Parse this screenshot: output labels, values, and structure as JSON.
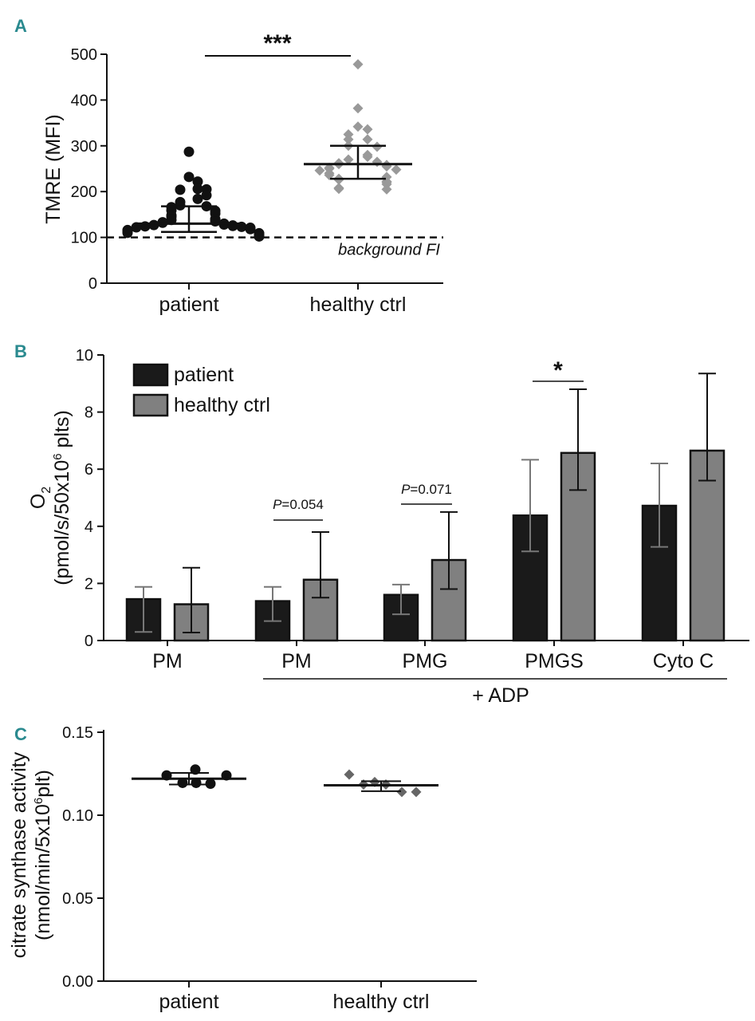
{
  "chart_data": [
    {
      "panel": "A",
      "type": "scatter",
      "ylabel": "TMRE (MFI)",
      "ylim": [
        0,
        500
      ],
      "yticks": [
        "0",
        "100",
        "200",
        "300",
        "400",
        "500"
      ],
      "categories": [
        "patient",
        "healthy ctrl"
      ],
      "reference_line": {
        "value": 100,
        "label": "background FI",
        "style": "dashed"
      },
      "significance": "***",
      "series": [
        {
          "name": "patient",
          "marker": "circle",
          "color": "#111111",
          "values": [
            287,
            232,
            222,
            206,
            204,
            205,
            192,
            184,
            177,
            170,
            168,
            166,
            159,
            158,
            152,
            148,
            145,
            140,
            138,
            135,
            133,
            132,
            130,
            128,
            127,
            126,
            125,
            124,
            123,
            122,
            121,
            120,
            118,
            116,
            115,
            113,
            112,
            110,
            109,
            108,
            107,
            106,
            105,
            104,
            103,
            102
          ],
          "median": 130,
          "iqr": [
            112,
            168
          ]
        },
        {
          "name": "healthy ctrl",
          "marker": "diamond",
          "color": "#999999",
          "values": [
            478,
            382,
            342,
            336,
            325,
            314,
            314,
            300,
            298,
            280,
            276,
            270,
            265,
            262,
            260,
            258,
            255,
            252,
            250,
            248,
            246,
            240,
            236,
            232,
            228,
            226,
            222,
            220,
            216,
            208,
            206,
            205
          ],
          "median": 260,
          "iqr": [
            228,
            300
          ]
        }
      ]
    },
    {
      "panel": "B",
      "type": "bar",
      "ylabel_line1": "O",
      "ylabel_sub": "2",
      "ylabel_line2a": "(pmol/s/50x10",
      "ylabel_sup": "6",
      "ylabel_line2b": " plts)",
      "ylim": [
        0,
        10
      ],
      "yticks": [
        "0",
        "2",
        "4",
        "6",
        "8",
        "10"
      ],
      "categories": [
        "PM",
        "PM",
        "PMG",
        "PMGS",
        "Cyto C"
      ],
      "group_label": "+ ADP",
      "series": [
        {
          "name": "patient",
          "color": "#1a1a1a",
          "values": [
            1.45,
            1.38,
            1.6,
            4.38,
            4.72
          ],
          "err_low": [
            0.3,
            0.68,
            0.92,
            3.12,
            3.28
          ],
          "err_high": [
            1.88,
            1.88,
            1.96,
            6.33,
            6.2
          ]
        },
        {
          "name": "healthy ctrl",
          "color": "#808080",
          "values": [
            1.27,
            2.13,
            2.82,
            6.57,
            6.65
          ],
          "err_low": [
            0.28,
            1.5,
            1.8,
            5.27,
            5.6
          ],
          "err_high": [
            2.55,
            3.8,
            4.5,
            8.8,
            9.35
          ]
        }
      ],
      "annotations": [
        {
          "text_p": "P",
          "text_rest": "=0.054",
          "group": 1
        },
        {
          "text_p": "P",
          "text_rest": "=0.071",
          "group": 2
        },
        {
          "text": "*",
          "group": 3
        }
      ]
    },
    {
      "panel": "C",
      "type": "scatter",
      "ylabel_line1": "citrate synthase activity",
      "ylabel_line2a": "(nmol/min/5x10",
      "ylabel_sup": "6",
      "ylabel_line2b": "plt)",
      "ylim": [
        0,
        0.15
      ],
      "yticks": [
        "0.00",
        "0.05",
        "0.10",
        "0.15"
      ],
      "categories": [
        "patient",
        "healthy ctrl"
      ],
      "series": [
        {
          "name": "patient",
          "marker": "circle",
          "color": "#111111",
          "values": [
            0.124,
            0.1275,
            0.124,
            0.1195,
            0.1195,
            0.119
          ],
          "mean": 0.122,
          "sd": [
            0.1185,
            0.1255
          ]
        },
        {
          "name": "healthy ctrl",
          "marker": "diamond",
          "color": "#666666",
          "values": [
            0.1245,
            0.12,
            0.1185,
            0.1185,
            0.114,
            0.114
          ],
          "mean": 0.118,
          "sd": [
            0.1145,
            0.1205
          ]
        }
      ]
    }
  ],
  "panels": {
    "a": "A",
    "b": "B",
    "c": "C"
  }
}
